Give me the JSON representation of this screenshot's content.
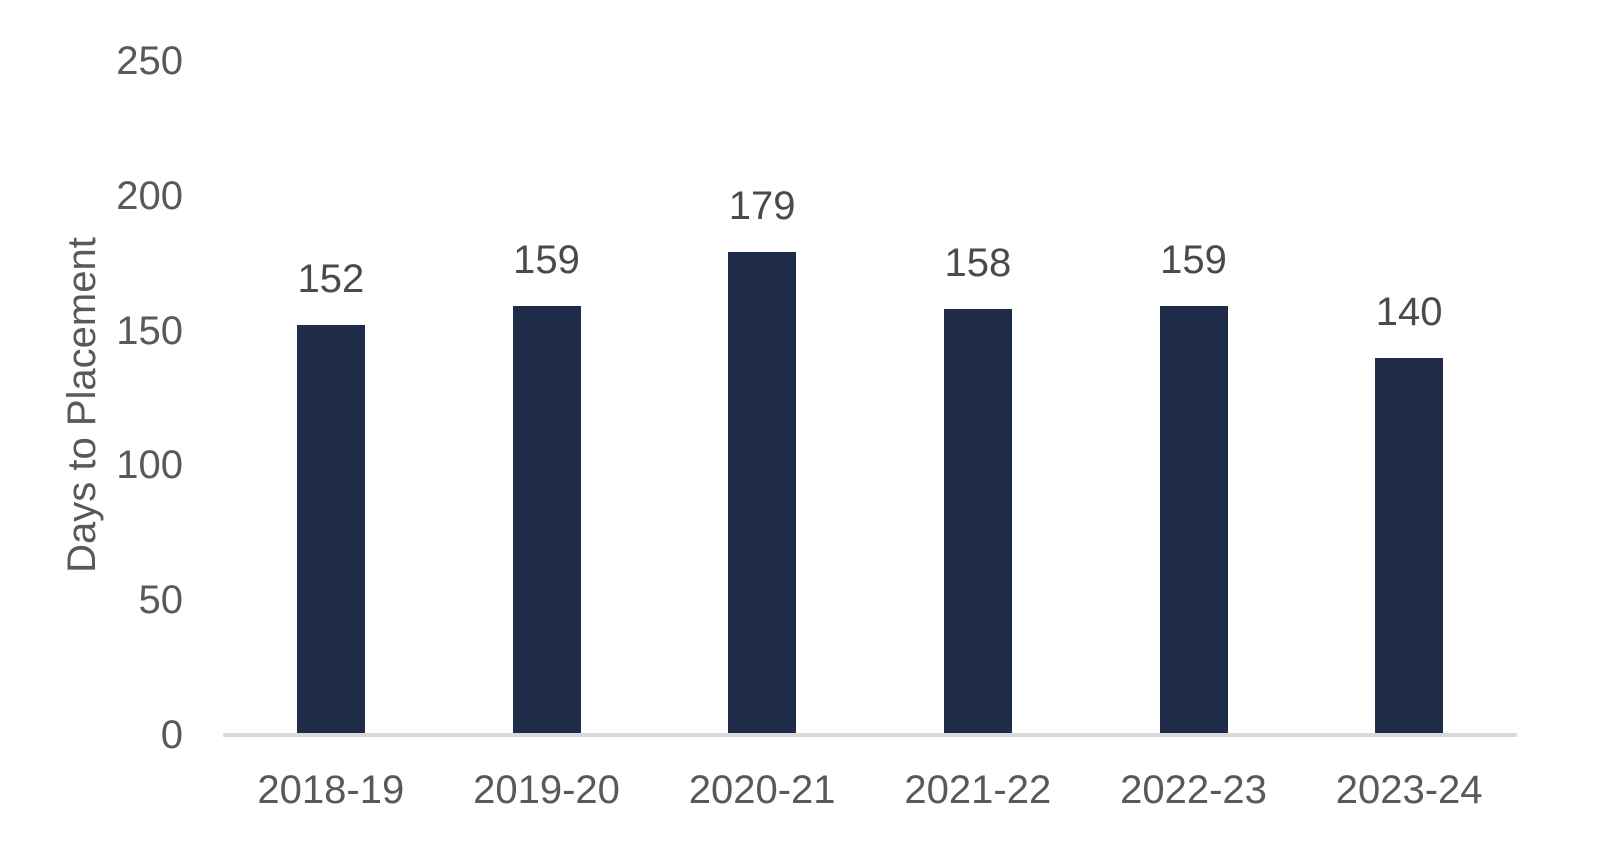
{
  "chart_data": {
    "type": "bar",
    "title": "",
    "xlabel": "",
    "ylabel": "Days to Placement",
    "categories": [
      "2018-19",
      "2019-20",
      "2020-21",
      "2021-22",
      "2022-23",
      "2023-24"
    ],
    "values": [
      152,
      159,
      179,
      158,
      159,
      140
    ],
    "data_labels": [
      "152",
      "159",
      "179",
      "158",
      "159",
      "140"
    ],
    "ylim": [
      0,
      250
    ],
    "yticks": [
      0,
      50,
      100,
      150,
      200,
      250
    ],
    "legend": "none",
    "grid": "off",
    "colors": {
      "bar": "#1E2C4A",
      "text": "#595959",
      "axis_line": "#D9D9D9",
      "background": "#FFFFFF"
    }
  }
}
